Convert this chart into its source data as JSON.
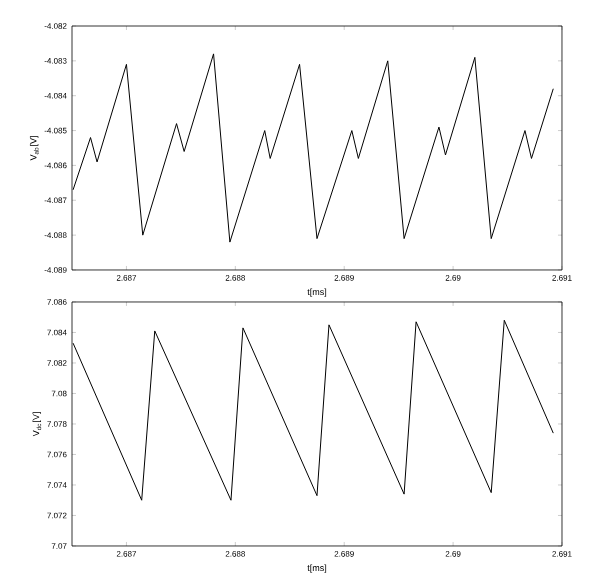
{
  "chart_data": [
    {
      "type": "line",
      "xlabel": "t[ms]",
      "ylabel": "V$_{ab}$[V]",
      "xlim": [
        2.6865,
        2.691
      ],
      "ylim": [
        -4.089,
        -4.082
      ],
      "xticks": [
        2.687,
        2.688,
        2.689,
        2.69,
        2.691
      ],
      "yticks": [
        -4.089,
        -4.088,
        -4.087,
        -4.086,
        -4.085,
        -4.084,
        -4.083,
        -4.082
      ],
      "series": [
        {
          "color": "#000000",
          "x": [
            2.68651,
            2.68667,
            2.68673,
            2.687,
            2.68715,
            2.68746,
            2.68753,
            2.6878,
            2.68795,
            2.68827,
            2.68832,
            2.68859,
            2.68875,
            2.68907,
            2.68913,
            2.6894,
            2.68955,
            2.68987,
            2.68993,
            2.6902,
            2.69035,
            2.69066,
            2.69072,
            2.69092
          ],
          "values": [
            -4.0867,
            -4.0852,
            -4.0859,
            -4.0831,
            -4.088,
            -4.0848,
            -4.0856,
            -4.0828,
            -4.0882,
            -4.085,
            -4.0858,
            -4.0831,
            -4.0881,
            -4.085,
            -4.0858,
            -4.083,
            -4.0881,
            -4.0849,
            -4.0857,
            -4.0829,
            -4.0881,
            -4.085,
            -4.0858,
            -4.0838
          ]
        }
      ]
    },
    {
      "type": "line",
      "xlabel": "t[ms]",
      "ylabel": "V$_{dc}$[V]",
      "xlim": [
        2.6865,
        2.691
      ],
      "ylim": [
        7.07,
        7.086
      ],
      "xticks": [
        2.687,
        2.688,
        2.689,
        2.69,
        2.691
      ],
      "yticks": [
        7.07,
        7.072,
        7.074,
        7.076,
        7.078,
        7.08,
        7.082,
        7.084,
        7.086
      ],
      "series": [
        {
          "color": "#000000",
          "x": [
            2.68651,
            2.68714,
            2.68726,
            2.68796,
            2.68807,
            2.68875,
            2.68886,
            2.68955,
            2.68966,
            2.69035,
            2.69047,
            2.69092
          ],
          "values": [
            7.0833,
            7.073,
            7.0841,
            7.073,
            7.0843,
            7.0733,
            7.0845,
            7.0734,
            7.0847,
            7.0735,
            7.0848,
            7.0774
          ]
        }
      ]
    }
  ]
}
